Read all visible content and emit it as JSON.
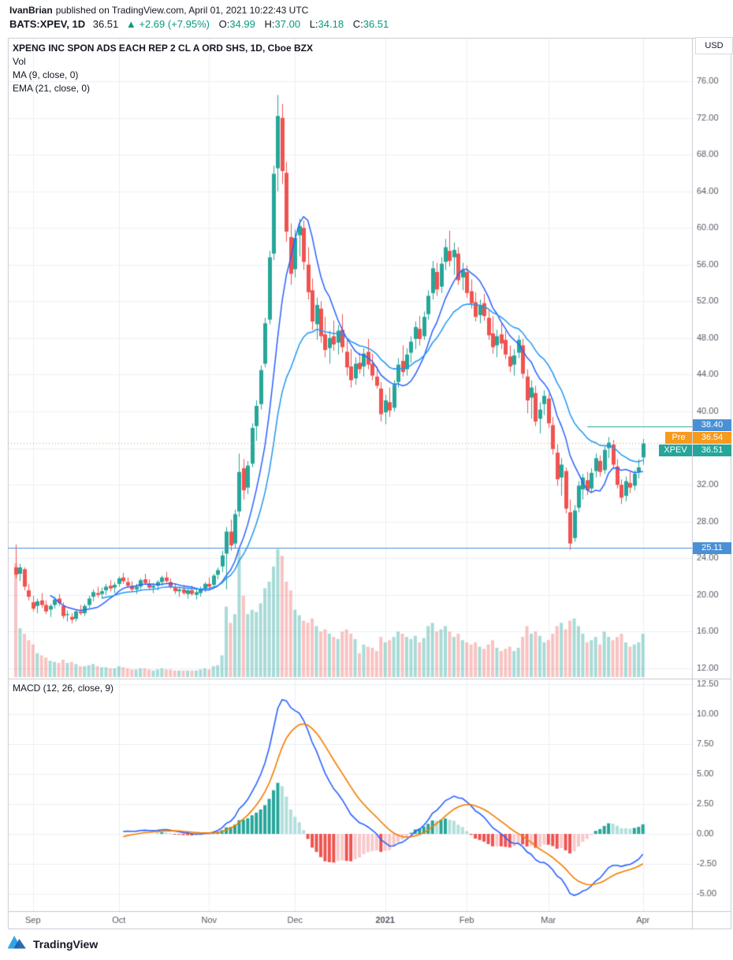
{
  "header": {
    "author": "IvanBrian",
    "published": "published on TradingView.com, April 01, 2021 10:22:43 UTC",
    "symbol_line": {
      "symbol": "BATS:XPEV, 1D",
      "last": "36.51",
      "change": "▲ +2.69 (+7.95%)",
      "o_label": "O:",
      "o_value": "34.99",
      "h_label": "H:",
      "h_value": "37.00",
      "l_label": "L:",
      "l_value": "34.18",
      "c_label": "C:",
      "c_value": "36.51"
    }
  },
  "chart": {
    "currency": "USD",
    "legend": {
      "title": "XPENG INC SPON ADS EACH REP 2 CL A ORD SHS, 1D, Cboe BZX",
      "vol": "Vol",
      "ma": "MA (9, close, 0)",
      "ema": "EMA (21, close, 0)",
      "macd": "MACD (12, 26, close, 9)"
    },
    "price_labels": {
      "line1": {
        "text": "38.40",
        "color": "#4a90d6"
      },
      "pre": {
        "prefix": "Pre",
        "value": "36.54",
        "color": "#f89a1b"
      },
      "last": {
        "prefix": "XPEV",
        "value": "36.51",
        "color": "#26a69a"
      },
      "support": {
        "text": "25.11",
        "color": "#4a90d6"
      }
    }
  },
  "footer": {
    "brand": "TradingView"
  },
  "chart_data": {
    "type": "candlestick+volume+macd",
    "title": "XPENG INC SPON ADS EACH REP 2 CL A ORD SHS, 1D, Cboe BZX",
    "symbol": "BATS:XPEV",
    "interval": "1D",
    "currency": "USD",
    "price_ticks": [
      76,
      72,
      68,
      64,
      60,
      56,
      52,
      48,
      44,
      40,
      36,
      32,
      28,
      24,
      20,
      16,
      12
    ],
    "macd_ticks": [
      12.5,
      10,
      7.5,
      5,
      2.5,
      0,
      -2.5,
      -5
    ],
    "x_ticks": [
      {
        "label": "Sep",
        "bar": 4
      },
      {
        "label": "Oct",
        "bar": 24
      },
      {
        "label": "Nov",
        "bar": 45
      },
      {
        "label": "Dec",
        "bar": 65
      },
      {
        "label": "2021",
        "bar": 86
      },
      {
        "label": "Feb",
        "bar": 105
      },
      {
        "label": "Mar",
        "bar": 124
      },
      {
        "label": "Apr",
        "bar": 146
      }
    ],
    "levels": {
      "resistance": 38.4,
      "premarket": 36.54,
      "last": 36.51,
      "support": 25.11
    },
    "indicators": {
      "ma": 9,
      "ema": 21,
      "macd_fast": 12,
      "macd_slow": 26,
      "macd_signal": 9
    },
    "colors": {
      "up": "#26a69a",
      "down": "#ef5350",
      "ma": "#2962ff",
      "ema": "#2196f3",
      "macd": "#2962ff",
      "signal": "#f57c00",
      "hist_pos": "#26a69a",
      "hist_pos_fade": "#b2dfdb",
      "hist_neg": "#ef5350",
      "hist_neg_fade": "#f8c8cb",
      "vol_up": "rgba(38,166,154,0.40)",
      "vol_down": "rgba(239,83,80,0.35)",
      "grid": "#eceff4",
      "frame": "#c6c9d2",
      "axis_text": "#555a64",
      "level_blue": "#4a90d6",
      "level_teal": "#26a69a",
      "pre_orange": "#f89a1b"
    },
    "ohlc": [
      [
        23,
        25.5,
        21.8,
        22.2
      ],
      [
        22.3,
        23.4,
        21.5,
        23
      ],
      [
        22.8,
        23,
        20.5,
        20.9
      ],
      [
        20.5,
        21.2,
        19.4,
        19.8
      ],
      [
        19.2,
        19.9,
        18.2,
        18.5
      ],
      [
        18.8,
        19.6,
        18,
        19.3
      ],
      [
        19.4,
        20.2,
        18.6,
        18.9
      ],
      [
        18.9,
        19.4,
        17.9,
        18.2
      ],
      [
        18.4,
        19,
        17.6,
        18.8
      ],
      [
        18.9,
        19.8,
        18.5,
        19.5
      ],
      [
        19.6,
        20.1,
        18.8,
        19.1
      ],
      [
        18.8,
        19.2,
        17.4,
        17.7
      ],
      [
        17.8,
        18.3,
        17.1,
        17.9
      ],
      [
        17.6,
        18,
        16.9,
        17.3
      ],
      [
        17.4,
        18.4,
        17.1,
        18.2
      ],
      [
        18.2,
        18.9,
        17.8,
        18
      ],
      [
        18,
        19,
        17.7,
        18.8
      ],
      [
        18.9,
        19.9,
        18.6,
        19.6
      ],
      [
        19.8,
        20.6,
        19.3,
        20.3
      ],
      [
        20.2,
        20.9,
        19.7,
        20
      ],
      [
        20.1,
        20.8,
        19.6,
        20.4
      ],
      [
        20.5,
        21.2,
        20,
        20.9
      ],
      [
        21,
        21.6,
        20.4,
        20.7
      ],
      [
        20.8,
        21.4,
        20.2,
        21.1
      ],
      [
        21.2,
        22,
        20.9,
        21.8
      ],
      [
        21.9,
        22.4,
        21.2,
        21.5
      ],
      [
        21.4,
        21.9,
        20.8,
        21
      ],
      [
        21,
        21.5,
        20.3,
        20.6
      ],
      [
        20.6,
        21.2,
        20.1,
        20.9
      ],
      [
        20.9,
        21.8,
        20.6,
        21.6
      ],
      [
        21.7,
        22.3,
        21.1,
        21.3
      ],
      [
        21.2,
        21.7,
        20.6,
        20.8
      ],
      [
        20.8,
        21.3,
        20.2,
        21
      ],
      [
        21,
        21.6,
        20.5,
        21.4
      ],
      [
        21.4,
        22.1,
        21,
        21.9
      ],
      [
        21.9,
        22.5,
        21.3,
        21.5
      ],
      [
        21.4,
        21.8,
        20.7,
        20.9
      ],
      [
        20.8,
        21.2,
        20.1,
        20.4
      ],
      [
        20.4,
        20.9,
        19.8,
        20.6
      ],
      [
        20.6,
        21.1,
        20,
        20.2
      ],
      [
        20.1,
        20.7,
        19.6,
        20.5
      ],
      [
        20.5,
        21,
        19.9,
        20.1
      ],
      [
        20,
        20.6,
        19.5,
        20.3
      ],
      [
        20.2,
        20.9,
        19.8,
        20.6
      ],
      [
        20.7,
        21.4,
        20.3,
        21.2
      ],
      [
        21.2,
        21.9,
        20.6,
        20.9
      ],
      [
        21.1,
        22.3,
        20.9,
        22.1
      ],
      [
        22.2,
        23,
        21.7,
        22.7
      ],
      [
        23.1,
        24.8,
        22.5,
        24.3
      ],
      [
        24.5,
        27.4,
        20.6,
        26.9
      ],
      [
        26.9,
        28.2,
        24.8,
        25.4
      ],
      [
        25.6,
        29.3,
        25.1,
        28.8
      ],
      [
        29.1,
        35.4,
        28.5,
        33.4
      ],
      [
        33.8,
        34.8,
        30.4,
        31.4
      ],
      [
        31.7,
        34.6,
        31,
        34.1
      ],
      [
        34.3,
        38.7,
        33.9,
        38.2
      ],
      [
        38.4,
        41.2,
        36.8,
        40.6
      ],
      [
        40.8,
        45,
        40.2,
        44.5
      ],
      [
        45.2,
        50.2,
        44.8,
        49.6
      ],
      [
        50,
        57.5,
        49.5,
        56.8
      ],
      [
        57.2,
        66.8,
        56.5,
        65.9
      ],
      [
        66.5,
        74.5,
        64,
        72.2
      ],
      [
        72,
        73.5,
        64.8,
        66.2
      ],
      [
        66,
        67.2,
        58.5,
        59.6
      ],
      [
        59,
        60.5,
        53.8,
        55
      ],
      [
        55.5,
        59.8,
        54.6,
        58.9
      ],
      [
        59.2,
        61,
        56.9,
        60.2
      ],
      [
        60,
        60.8,
        55.4,
        56.3
      ],
      [
        56,
        57.9,
        52.2,
        53
      ],
      [
        53.2,
        54.5,
        48.9,
        49.8
      ],
      [
        49.5,
        52.4,
        47.8,
        51.6
      ],
      [
        51.2,
        52,
        47.5,
        48.2
      ],
      [
        48.4,
        50.3,
        45.9,
        46.7
      ],
      [
        46.9,
        48.8,
        45.2,
        48
      ],
      [
        48.2,
        49.9,
        46.6,
        47.3
      ],
      [
        47.5,
        49.4,
        46.2,
        48.8
      ],
      [
        48.9,
        50.6,
        46.4,
        47
      ],
      [
        46.5,
        47.8,
        43.9,
        44.8
      ],
      [
        44.9,
        46.8,
        42.6,
        43.4
      ],
      [
        43.6,
        45.9,
        42.9,
        45.2
      ],
      [
        45.3,
        46.4,
        44.1,
        44.6
      ],
      [
        44.9,
        46.9,
        43.8,
        46.3
      ],
      [
        46.5,
        47.9,
        44.6,
        45.1
      ],
      [
        45.2,
        46.3,
        43.4,
        43.9
      ],
      [
        43.8,
        44.9,
        42.5,
        42.8
      ],
      [
        42.5,
        43.2,
        38.9,
        39.7
      ],
      [
        39.9,
        41.8,
        38.6,
        41.2
      ],
      [
        41,
        42.6,
        39.4,
        40.1
      ],
      [
        40.4,
        43.4,
        40,
        42.9
      ],
      [
        43.2,
        45.8,
        42.6,
        45.1
      ],
      [
        45.5,
        47.2,
        43.8,
        44.3
      ],
      [
        44.6,
        46.9,
        43.9,
        46.2
      ],
      [
        46.4,
        48.2,
        45.3,
        47.6
      ],
      [
        47.9,
        49.8,
        46.8,
        49.2
      ],
      [
        49,
        50.4,
        47.2,
        47.9
      ],
      [
        48.2,
        50.9,
        47.8,
        50.3
      ],
      [
        50.6,
        53.2,
        50,
        52.6
      ],
      [
        52.9,
        56.4,
        52.2,
        55.6
      ],
      [
        55.2,
        56.2,
        52.6,
        53.3
      ],
      [
        53.6,
        56.8,
        52.9,
        56.1
      ],
      [
        56.3,
        58.8,
        55.4,
        57.9
      ],
      [
        57.5,
        59.7,
        55.8,
        56.4
      ],
      [
        56.8,
        58.4,
        54.9,
        57.6
      ],
      [
        57.2,
        57.9,
        53.8,
        54.3
      ],
      [
        54.6,
        56.2,
        53.2,
        55.4
      ],
      [
        55.2,
        55.9,
        52.4,
        52.9
      ],
      [
        53.1,
        54.4,
        51.2,
        51.8
      ],
      [
        51.9,
        53,
        49.8,
        50.3
      ],
      [
        50.5,
        52.2,
        49.6,
        51.6
      ],
      [
        51.8,
        52.8,
        49.9,
        50.4
      ],
      [
        50.2,
        51,
        47.8,
        48.3
      ],
      [
        48.5,
        50.4,
        46.3,
        47
      ],
      [
        47.2,
        48.9,
        45.9,
        48.2
      ],
      [
        48.4,
        49.6,
        46.8,
        47.4
      ],
      [
        47.8,
        48.8,
        45.7,
        46.2
      ],
      [
        46,
        47.2,
        44.3,
        44.9
      ],
      [
        45.1,
        46.8,
        43.9,
        46.1
      ],
      [
        46.4,
        48.3,
        45.8,
        47.8
      ],
      [
        47.2,
        47.9,
        43.6,
        44.1
      ],
      [
        43.8,
        44.6,
        39.8,
        41.2
      ],
      [
        41.5,
        43.4,
        39.2,
        42.6
      ],
      [
        42,
        42.8,
        38.4,
        38.9
      ],
      [
        39.2,
        41,
        37.6,
        40.2
      ],
      [
        40.8,
        42.3,
        39.6,
        41.7
      ],
      [
        41.4,
        41.9,
        38.2,
        38.7
      ],
      [
        38.5,
        39.4,
        35.3,
        35.9
      ],
      [
        35.5,
        36.4,
        31.9,
        32.6
      ],
      [
        32.8,
        34.9,
        30.8,
        34.2
      ],
      [
        33.5,
        33.9,
        28.9,
        29.4
      ],
      [
        29,
        30.4,
        24.9,
        25.6
      ],
      [
        26.2,
        29.8,
        25.8,
        29.2
      ],
      [
        29.5,
        32.4,
        29,
        31.9
      ],
      [
        31.5,
        33.2,
        30.4,
        32.8
      ],
      [
        32.5,
        33.4,
        30.9,
        31.4
      ],
      [
        31.6,
        33.8,
        31.2,
        33.3
      ],
      [
        33.5,
        35.4,
        32.8,
        34.9
      ],
      [
        34.6,
        35.2,
        32.9,
        33.4
      ],
      [
        33.6,
        36.2,
        33.2,
        35.8
      ],
      [
        36,
        37.2,
        34.9,
        36.6
      ],
      [
        36.4,
        36.9,
        33.8,
        34.2
      ],
      [
        34,
        34.8,
        31.6,
        32
      ],
      [
        32,
        32.6,
        29.9,
        30.6
      ],
      [
        30.8,
        32.9,
        30.2,
        32.4
      ],
      [
        32.2,
        33.4,
        31.1,
        31.7
      ],
      [
        31.9,
        33.6,
        31.4,
        33.2
      ],
      [
        33.4,
        34.8,
        32.7,
        33.9
      ],
      [
        34.99,
        37,
        34.18,
        36.51
      ]
    ],
    "volume": [
      105,
      45,
      40,
      34,
      30,
      22,
      20,
      18,
      15,
      14,
      13,
      16,
      13,
      14,
      12,
      10,
      10,
      11,
      12,
      10,
      9,
      9,
      8,
      8,
      10,
      9,
      8,
      7,
      7,
      8,
      8,
      7,
      6,
      7,
      8,
      7,
      7,
      6,
      6,
      6,
      6,
      6,
      6,
      7,
      8,
      7,
      10,
      11,
      20,
      65,
      50,
      58,
      118,
      75,
      58,
      62,
      60,
      68,
      82,
      88,
      102,
      118,
      112,
      88,
      80,
      62,
      57,
      52,
      50,
      54,
      47,
      42,
      44,
      40,
      37,
      35,
      42,
      44,
      40,
      35,
      22,
      30,
      28,
      27,
      24,
      37,
      32,
      34,
      37,
      42,
      40,
      37,
      35,
      38,
      32,
      36,
      47,
      50,
      42,
      44,
      47,
      42,
      37,
      40,
      34,
      32,
      30,
      32,
      28,
      26,
      30,
      34,
      27,
      24,
      26,
      28,
      24,
      27,
      37,
      47,
      40,
      42,
      38,
      32,
      34,
      40,
      47,
      50,
      44,
      52,
      54,
      47,
      40,
      32,
      34,
      37,
      30,
      42,
      37,
      34,
      37,
      40,
      32,
      28,
      30,
      32,
      40
    ]
  }
}
